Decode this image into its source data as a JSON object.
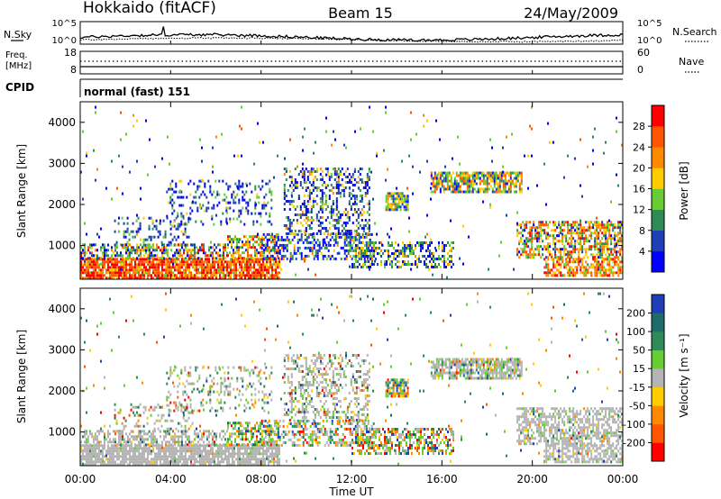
{
  "header": {
    "station": "Hokkaido (fitACF)",
    "beam": "Beam 15",
    "date": "24/May/2009"
  },
  "noise_panel": {
    "left_label": "N.Sky",
    "right_label": "N.Search",
    "left_ticks": [
      "10^5",
      "10^0"
    ],
    "right_ticks": [
      "10^5",
      "10^0"
    ]
  },
  "freq_panel": {
    "left_label_line1": "Freq.",
    "left_label_line2": "[MHz]",
    "right_label": "Nave",
    "left_ticks": [
      "18",
      "8"
    ],
    "right_ticks": [
      "60",
      "0"
    ]
  },
  "cpid_panel": {
    "label": "CPID",
    "mode_text": "normal (fast) 151"
  },
  "colors": {
    "power_scale": [
      "#0000ff",
      "#1e3fb8",
      "#2e8b57",
      "#66cc33",
      "#ffcc00",
      "#ff8800",
      "#ff5500",
      "#ff0000"
    ],
    "velocity_scale": [
      "#1e3fb8",
      "#1f6b6b",
      "#2e8b57",
      "#66cc33",
      "#b4b4b4",
      "#ffcc00",
      "#ff8800",
      "#ff5500",
      "#ff0000"
    ],
    "ground_scatter": "#b4b4b4"
  },
  "chart_data": [
    {
      "type": "heatmap",
      "panel": "power",
      "ylabel": "Slant Range [km]",
      "ylim": [
        180,
        4500
      ],
      "y_ticks": [
        "4000",
        "3000",
        "2000",
        "1000"
      ],
      "x_ticks": [
        "00:00",
        "04:00",
        "08:00",
        "12:00",
        "16:00",
        "20:00",
        "00:00"
      ],
      "colorbar_label": "Power [dB]",
      "colorbar_ticks": [
        "28",
        "24",
        "20",
        "16",
        "12",
        "8",
        "4"
      ]
    },
    {
      "type": "heatmap",
      "panel": "velocity",
      "ylabel": "Slant Range [km]",
      "ylim": [
        180,
        4500
      ],
      "y_ticks": [
        "4000",
        "3000",
        "2000",
        "1000"
      ],
      "x_ticks": [
        "00:00",
        "04:00",
        "08:00",
        "12:00",
        "16:00",
        "20:00",
        "00:00"
      ],
      "xlabel": "Time UT",
      "colorbar_label": "Velocity [m s⁻¹]",
      "colorbar_ticks": [
        "200",
        "100",
        "50",
        "15",
        "-15",
        "-50",
        "-100",
        "-200"
      ]
    }
  ]
}
